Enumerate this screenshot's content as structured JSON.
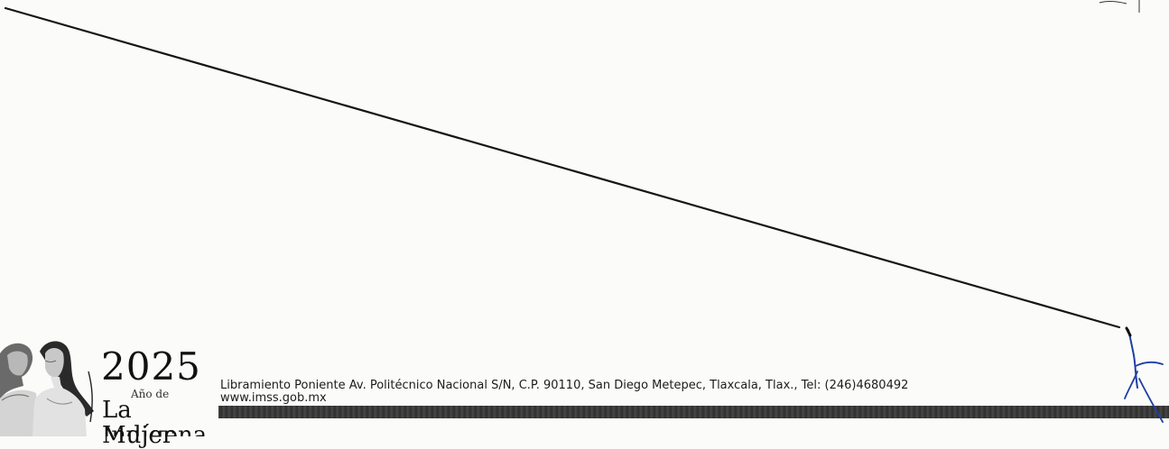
{
  "logo": {
    "year": "2025",
    "subtitle": "Año de",
    "title_line1": "La Mujer",
    "title_line2": "Indígena"
  },
  "footer": {
    "address": "Libramiento Poniente Av. Politécnico Nacional S/N, C.P. 90110, San Diego Metepec, Tlaxcala, Tlax., Tel: (246)4680492",
    "website": "www.imss.gob.mx"
  },
  "colors": {
    "ink": "#111111",
    "signature_ink": "#1f3fa6",
    "footer_bar": "#3a3a3a",
    "paper": "#fbfbf9"
  }
}
